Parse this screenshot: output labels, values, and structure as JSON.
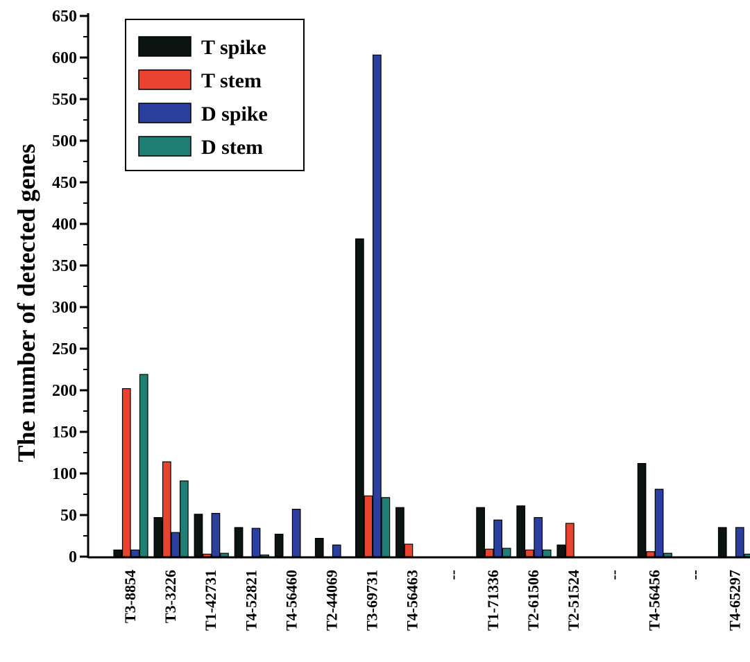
{
  "chart_data": {
    "type": "bar",
    "ylabel": "The number of detected genes",
    "xlabel": "",
    "ylim": [
      0,
      650
    ],
    "yticks": [
      0,
      50,
      100,
      150,
      200,
      250,
      300,
      350,
      400,
      450,
      500,
      550,
      600,
      650
    ],
    "legend_position": "top-left",
    "categories": [
      "T3-8854",
      "T3-3226",
      "T1-42731",
      "T4-52821",
      "T4-56460",
      "T2-44069",
      "T3-69731",
      "T4-56463",
      "--",
      "T1-71336",
      "T2-61506",
      "T2-51524",
      "--",
      "T4-56456",
      "--",
      "T4-65297"
    ],
    "series": [
      {
        "name": "T spike",
        "color": "#0b1410",
        "values": [
          8,
          47,
          51,
          35,
          27,
          22,
          382,
          59,
          0,
          59,
          61,
          14,
          0,
          112,
          0,
          35
        ]
      },
      {
        "name": "T stem",
        "color": "#e8432f",
        "values": [
          202,
          114,
          3,
          0,
          0,
          0,
          73,
          15,
          0,
          9,
          8,
          40,
          0,
          6,
          0,
          0
        ]
      },
      {
        "name": "D spike",
        "color": "#2a3f9e",
        "values": [
          8,
          29,
          52,
          34,
          57,
          14,
          603,
          0,
          0,
          44,
          47,
          0,
          0,
          81,
          0,
          35
        ]
      },
      {
        "name": "D stem",
        "color": "#1f7f74",
        "values": [
          219,
          91,
          4,
          2,
          0,
          0,
          71,
          0,
          0,
          10,
          8,
          0,
          0,
          4,
          0,
          3
        ]
      }
    ]
  }
}
